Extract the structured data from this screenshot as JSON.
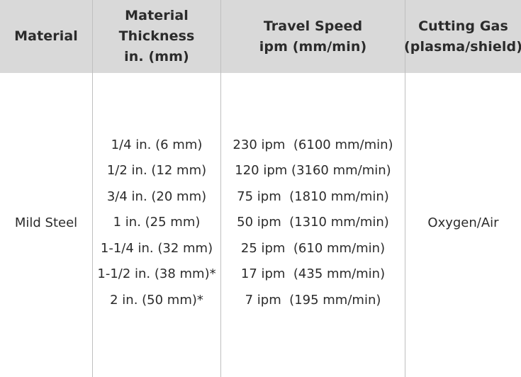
{
  "table": {
    "headers": {
      "material": [
        "Material"
      ],
      "thickness": [
        "Material",
        "Thickness",
        "in. (mm)"
      ],
      "speed": [
        "Travel Speed",
        "ipm (mm/min)"
      ],
      "gas": [
        "Cutting Gas",
        "(plasma/shield)"
      ]
    },
    "row": {
      "material": "Mild Steel",
      "thicknesses": [
        "1/4 in. (6 mm)",
        "1/2 in. (12 mm)",
        "3/4 in. (20 mm)",
        "1 in. (25 mm)",
        "1-1/4 in. (32 mm)",
        "1-1/2 in. (38 mm)*",
        "2 in. (50 mm)*"
      ],
      "speeds": [
        "230 ipm  (6100 mm/min)",
        "120 ipm (3160 mm/min)",
        "75 ipm  (1810 mm/min)",
        "50 ipm  (1310 mm/min)",
        "25 ipm  (610 mm/min)",
        "17 ipm  (435 mm/min)",
        "7 ipm  (195 mm/min)"
      ],
      "gas": "Oxygen/Air"
    },
    "colors": {
      "header_bg": "#d9d9d9",
      "divider": "#bfbfbf",
      "text": "#2b2b2b"
    }
  }
}
